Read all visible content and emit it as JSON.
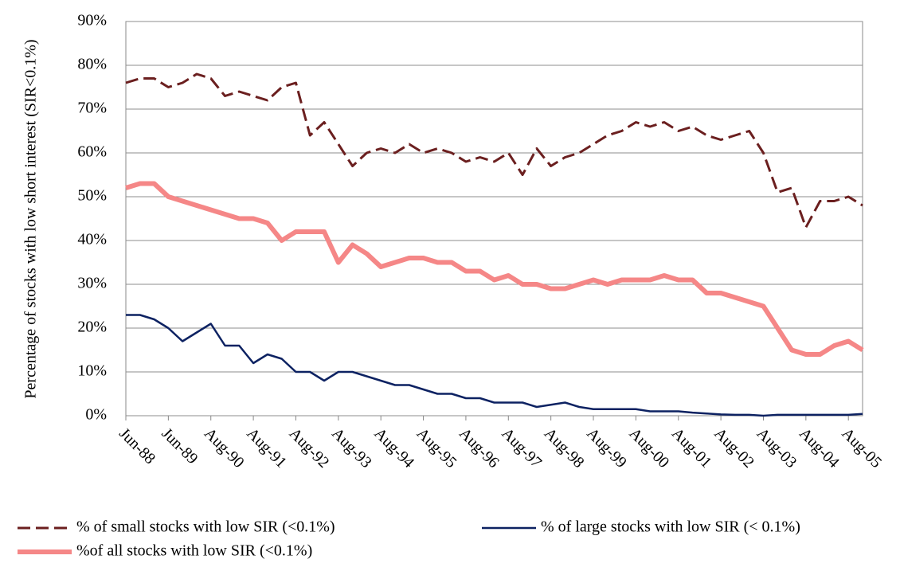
{
  "chart_data": {
    "type": "line",
    "y_axis_label": "Percentage of stocks with low short interest (SIR<0.1%)",
    "categories": [
      "Jun-88",
      null,
      null,
      "Jun-89",
      null,
      null,
      "Aug-90",
      null,
      null,
      "Aug-91",
      null,
      null,
      "Aug-92",
      null,
      null,
      "Aug-93",
      null,
      null,
      "Aug-94",
      null,
      null,
      "Aug-95",
      null,
      null,
      "Aug-96",
      null,
      null,
      "Aug-97",
      null,
      null,
      "Aug-98",
      null,
      null,
      "Aug-99",
      null,
      null,
      "Aug-00",
      null,
      null,
      "Aug-01",
      null,
      null,
      "Aug-02",
      null,
      null,
      "Aug-03",
      null,
      null,
      "Aug-04",
      null,
      null,
      "Aug-05",
      null
    ],
    "ylim": [
      0,
      90
    ],
    "yticks": [
      {
        "value": 0,
        "label": "0%"
      },
      {
        "value": 10,
        "label": "10%"
      },
      {
        "value": 20,
        "label": "20%"
      },
      {
        "value": 30,
        "label": "30%"
      },
      {
        "value": 40,
        "label": "40%"
      },
      {
        "value": 50,
        "label": "50%"
      },
      {
        "value": 60,
        "label": "60%"
      },
      {
        "value": 70,
        "label": "70%"
      },
      {
        "value": 80,
        "label": "80%"
      },
      {
        "value": 90,
        "label": "90%"
      }
    ],
    "grid": true,
    "series": [
      {
        "name": "% of small stocks with low SIR (<0.1%)",
        "color": "#6b1f1f",
        "style": "dashed",
        "values": [
          76,
          77,
          77,
          75,
          76,
          78,
          77,
          73,
          74,
          73,
          72,
          75,
          76,
          64,
          67,
          62,
          57,
          60,
          61,
          60,
          62,
          60,
          61,
          60,
          58,
          59,
          58,
          60,
          55,
          61,
          57,
          59,
          60,
          62,
          64,
          65,
          67,
          66,
          67,
          65,
          66,
          64,
          63,
          64,
          65,
          60,
          51,
          52,
          43,
          49,
          49,
          50,
          48
        ]
      },
      {
        "name": "% of large stocks with low SIR (< 0.1%)",
        "color": "#0d2262",
        "style": "solid",
        "values": [
          23,
          23,
          22,
          20,
          17,
          19,
          21,
          16,
          16,
          12,
          14,
          13,
          10,
          10,
          8,
          10,
          10,
          9,
          8,
          7,
          7,
          6,
          5,
          5,
          4,
          4,
          3,
          3,
          3,
          2,
          2.5,
          3,
          2,
          1.5,
          1.5,
          1.5,
          1.5,
          1,
          1,
          1,
          0.7,
          0.5,
          0.3,
          0.2,
          0.2,
          0,
          0.2,
          0.2,
          0.2,
          0.2,
          0.2,
          0.2,
          0.4
        ]
      },
      {
        "name": "%of all stocks with low SIR (<0.1%)",
        "color": "#f58787",
        "style": "thick",
        "values": [
          52,
          53,
          53,
          50,
          49,
          48,
          47,
          46,
          45,
          45,
          44,
          40,
          42,
          42,
          42,
          35,
          39,
          37,
          34,
          35,
          36,
          36,
          35,
          35,
          33,
          33,
          31,
          32,
          30,
          30,
          29,
          29,
          30,
          31,
          30,
          31,
          31,
          31,
          32,
          31,
          31,
          28,
          28,
          27,
          26,
          25,
          20,
          15,
          14,
          14,
          16,
          17,
          15
        ]
      }
    ]
  }
}
